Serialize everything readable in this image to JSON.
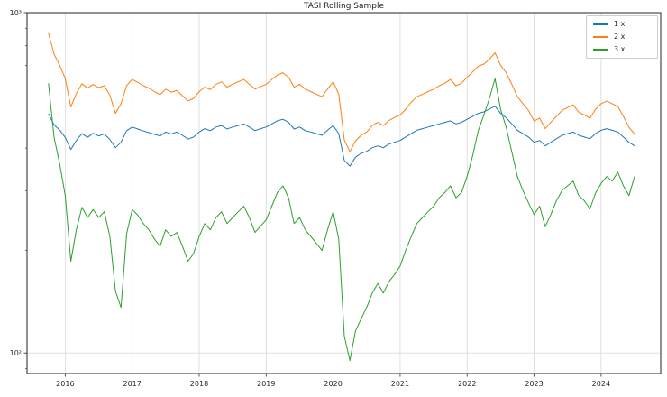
{
  "chart_data": {
    "type": "line",
    "title": "TASI Rolling Sample",
    "xlabel": "",
    "ylabel": "",
    "yscale": "log",
    "grid": true,
    "legend_position": "upper right",
    "xlim": [
      2015.43,
      2024.89
    ],
    "ylim": [
      87,
      1000
    ],
    "x_start": 2015.75,
    "x_step": 0.0833333,
    "x_ticks": [
      {
        "label": "2016",
        "value": 2016
      },
      {
        "label": "2017",
        "value": 2017
      },
      {
        "label": "2018",
        "value": 2018
      },
      {
        "label": "2019",
        "value": 2019
      },
      {
        "label": "2020",
        "value": 2020
      },
      {
        "label": "2021",
        "value": 2021
      },
      {
        "label": "2022",
        "value": 2022
      },
      {
        "label": "2023",
        "value": 2023
      },
      {
        "label": "2024",
        "value": 2024
      }
    ],
    "y_ticks": [
      {
        "label": "10³",
        "value": 1000
      },
      {
        "label": "10²",
        "value": 100
      }
    ],
    "y_minor_ticks": [
      90,
      200,
      300,
      400,
      500,
      600,
      700,
      800,
      900
    ],
    "series": [
      {
        "name": "1 x",
        "color": "#1f77b4",
        "values": [
          505,
          468,
          452,
          430,
          396,
          421,
          441,
          430,
          442,
          434,
          440,
          424,
          401,
          416,
          450,
          461,
          455,
          449,
          444,
          439,
          434,
          446,
          440,
          446,
          436,
          425,
          431,
          446,
          456,
          450,
          461,
          466,
          455,
          461,
          466,
          471,
          461,
          450,
          456,
          461,
          471,
          481,
          486,
          476,
          455,
          461,
          450,
          446,
          441,
          436,
          451,
          466,
          441,
          368,
          354,
          376,
          386,
          391,
          401,
          406,
          401,
          411,
          416,
          421,
          431,
          441,
          451,
          456,
          461,
          466,
          471,
          476,
          481,
          471,
          476,
          486,
          496,
          506,
          511,
          521,
          531,
          506,
          491,
          471,
          451,
          441,
          431,
          416,
          421,
          406,
          416,
          426,
          436,
          441,
          446,
          436,
          431,
          426,
          441,
          451,
          456,
          451,
          446,
          431,
          416,
          406
        ]
      },
      {
        "name": "2 x",
        "color": "#ff7f0e",
        "values": [
          870,
          755,
          700,
          640,
          528,
          578,
          618,
          600,
          615,
          602,
          610,
          572,
          506,
          540,
          610,
          636,
          624,
          610,
          600,
          586,
          574,
          596,
          584,
          590,
          570,
          550,
          560,
          586,
          604,
          594,
          616,
          626,
          604,
          616,
          626,
          636,
          616,
          596,
          606,
          616,
          636,
          656,
          666,
          646,
          604,
          616,
          596,
          586,
          576,
          566,
          596,
          626,
          576,
          422,
          390,
          420,
          436,
          446,
          466,
          476,
          466,
          482,
          492,
          500,
          520,
          546,
          566,
          576,
          586,
          596,
          610,
          620,
          636,
          610,
          620,
          646,
          670,
          696,
          706,
          730,
          762,
          700,
          666,
          616,
          566,
          540,
          516,
          480,
          490,
          456,
          476,
          496,
          516,
          526,
          536,
          510,
          500,
          490,
          520,
          540,
          550,
          540,
          530,
          496,
          460,
          440
        ]
      },
      {
        "name": "3 x",
        "color": "#2ca02c",
        "values": [
          620,
          430,
          360,
          290,
          186,
          230,
          268,
          250,
          264,
          250,
          260,
          220,
          152,
          136,
          224,
          264,
          254,
          240,
          230,
          216,
          206,
          230,
          220,
          226,
          206,
          186,
          196,
          220,
          240,
          230,
          250,
          260,
          240,
          250,
          260,
          270,
          250,
          226,
          236,
          246,
          270,
          296,
          310,
          286,
          240,
          250,
          230,
          220,
          210,
          200,
          230,
          260,
          216,
          112,
          95,
          116,
          126,
          136,
          150,
          160,
          150,
          162,
          170,
          180,
          200,
          220,
          240,
          250,
          260,
          270,
          286,
          296,
          310,
          286,
          296,
          330,
          380,
          450,
          500,
          560,
          640,
          520,
          460,
          390,
          330,
          300,
          276,
          255,
          270,
          235,
          255,
          280,
          300,
          310,
          320,
          290,
          280,
          265,
          295,
          315,
          330,
          320,
          340,
          310,
          290,
          330
        ]
      }
    ]
  }
}
